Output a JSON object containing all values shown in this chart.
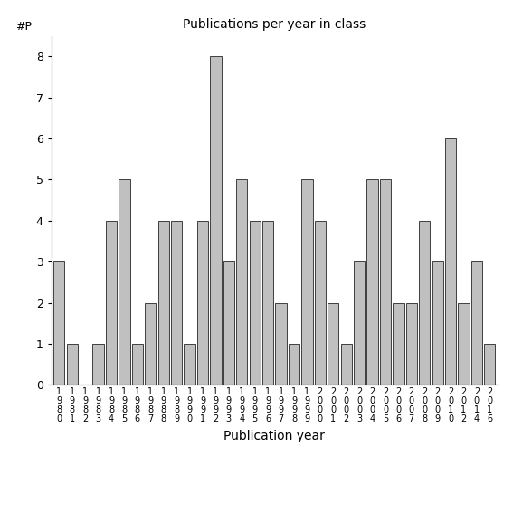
{
  "title": "Publications per year in class",
  "xlabel": "Publication year",
  "ylabel": "#P",
  "bar_color": "#c0c0c0",
  "bar_edgecolor": "#000000",
  "ylim": [
    0,
    8.5
  ],
  "yticks": [
    0,
    1,
    2,
    3,
    4,
    5,
    6,
    7,
    8
  ],
  "years": [
    "1980",
    "1981",
    "1982",
    "1983",
    "1984",
    "1985",
    "1986",
    "1987",
    "1988",
    "1989",
    "1990",
    "1991",
    "1992",
    "1993",
    "1994",
    "1995",
    "1996",
    "1997",
    "1998",
    "1999",
    "2000",
    "2001",
    "2002",
    "2003",
    "2004",
    "2005",
    "2006",
    "2007",
    "2008",
    "2009",
    "2010",
    "2012",
    "2014",
    "2016"
  ],
  "values": [
    3,
    1,
    0,
    1,
    4,
    5,
    1,
    2,
    4,
    4,
    1,
    4,
    8,
    3,
    5,
    4,
    4,
    2,
    1,
    5,
    4,
    2,
    1,
    3,
    5,
    5,
    2,
    2,
    4,
    3,
    6,
    2,
    3,
    1
  ],
  "figsize": [
    5.67,
    5.67
  ],
  "dpi": 100
}
